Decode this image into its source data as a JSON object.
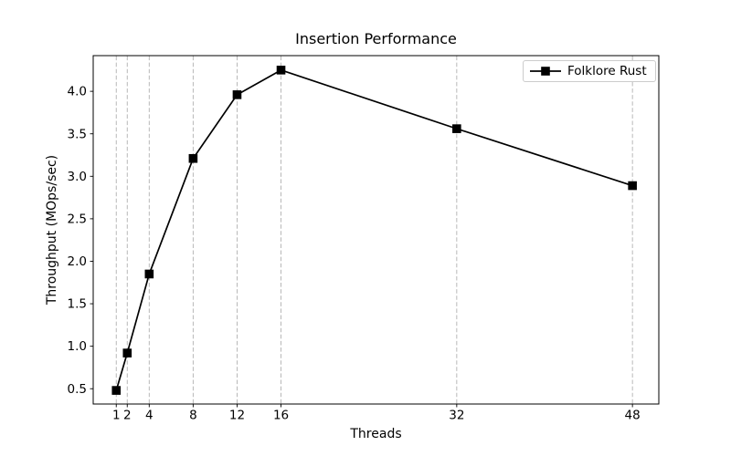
{
  "chart_data": {
    "type": "line",
    "title": "Insertion Performance",
    "xlabel": "Threads",
    "ylabel": "Throughput (MOps/sec)",
    "series": [
      {
        "name": "Folklore Rust",
        "x": [
          1,
          2,
          4,
          8,
          12,
          16,
          32,
          48
        ],
        "y": [
          0.48,
          0.92,
          1.85,
          3.21,
          3.96,
          4.25,
          3.56,
          2.89
        ]
      }
    ],
    "xticks": [
      1,
      2,
      4,
      8,
      12,
      16,
      32,
      48
    ],
    "yticks": [
      0.5,
      1.0,
      1.5,
      2.0,
      2.5,
      3.0,
      3.5,
      4.0
    ],
    "xlim": [
      -1.1,
      50.4
    ],
    "ylim": [
      0.32,
      4.42
    ],
    "grid": "vertical-dashed-at-xticks",
    "legend_position": "upper right",
    "marker": "square",
    "colors": {
      "line": "#000000",
      "marker": "#000000",
      "grid": "#b0b0b0",
      "spine": "#000000",
      "background": "#ffffff",
      "legend_border": "#cccccc"
    }
  }
}
